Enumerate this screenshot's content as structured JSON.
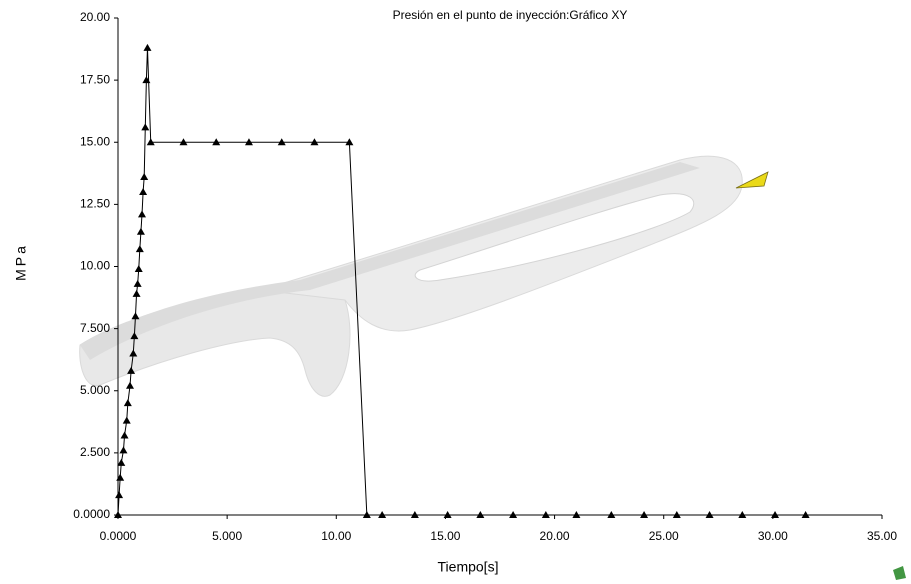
{
  "chart_data": {
    "type": "line",
    "title": "Presión en el punto de inyección:Gráfico XY",
    "x_label": "Tiempo[s]",
    "y_label": "MPa",
    "color": "#000000",
    "marker": "triangle",
    "xlim": [
      0,
      35
    ],
    "ylim": [
      0,
      20
    ],
    "xticks": [
      {
        "value": 0,
        "label": "0.0000"
      },
      {
        "value": 5,
        "label": "5.000"
      },
      {
        "value": 10,
        "label": "10.00"
      },
      {
        "value": 15,
        "label": "15.00"
      },
      {
        "value": 20,
        "label": "20.00"
      },
      {
        "value": 25,
        "label": "25.00"
      },
      {
        "value": 30,
        "label": "30.00"
      },
      {
        "value": 35,
        "label": "35.00"
      }
    ],
    "yticks": [
      {
        "value": 0,
        "label": "0.0000"
      },
      {
        "value": 2.5,
        "label": "2.500"
      },
      {
        "value": 5,
        "label": "5.000"
      },
      {
        "value": 7.5,
        "label": "7.500"
      },
      {
        "value": 10,
        "label": "10.00"
      },
      {
        "value": 12.5,
        "label": "12.50"
      },
      {
        "value": 15,
        "label": "15.00"
      },
      {
        "value": 17.5,
        "label": "17.50"
      },
      {
        "value": 20,
        "label": "20.00"
      }
    ],
    "x": [
      0,
      0.05,
      0.1,
      0.15,
      0.25,
      0.3,
      0.4,
      0.45,
      0.55,
      0.6,
      0.7,
      0.75,
      0.8,
      0.85,
      0.9,
      0.95,
      1.0,
      1.05,
      1.1,
      1.15,
      1.2,
      1.25,
      1.3,
      1.35,
      1.5,
      3.0,
      4.5,
      6.0,
      7.5,
      9.0,
      10.6,
      11.4,
      12.1,
      13.6,
      15.1,
      16.6,
      18.1,
      19.6,
      21.0,
      22.6,
      24.1,
      25.6,
      27.1,
      28.6,
      30.1,
      31.5
    ],
    "values": [
      0,
      0.8,
      1.5,
      2.1,
      2.6,
      3.2,
      3.8,
      4.5,
      5.2,
      5.8,
      6.5,
      7.2,
      8.0,
      8.9,
      9.3,
      9.9,
      10.7,
      11.4,
      12.1,
      13.0,
      13.6,
      15.6,
      17.5,
      18.8,
      15.0,
      15.0,
      15.0,
      15.0,
      15.0,
      15.0,
      15.0,
      0,
      0,
      0,
      0,
      0,
      0,
      0,
      0,
      0,
      0,
      0,
      0,
      0,
      0,
      0
    ]
  }
}
